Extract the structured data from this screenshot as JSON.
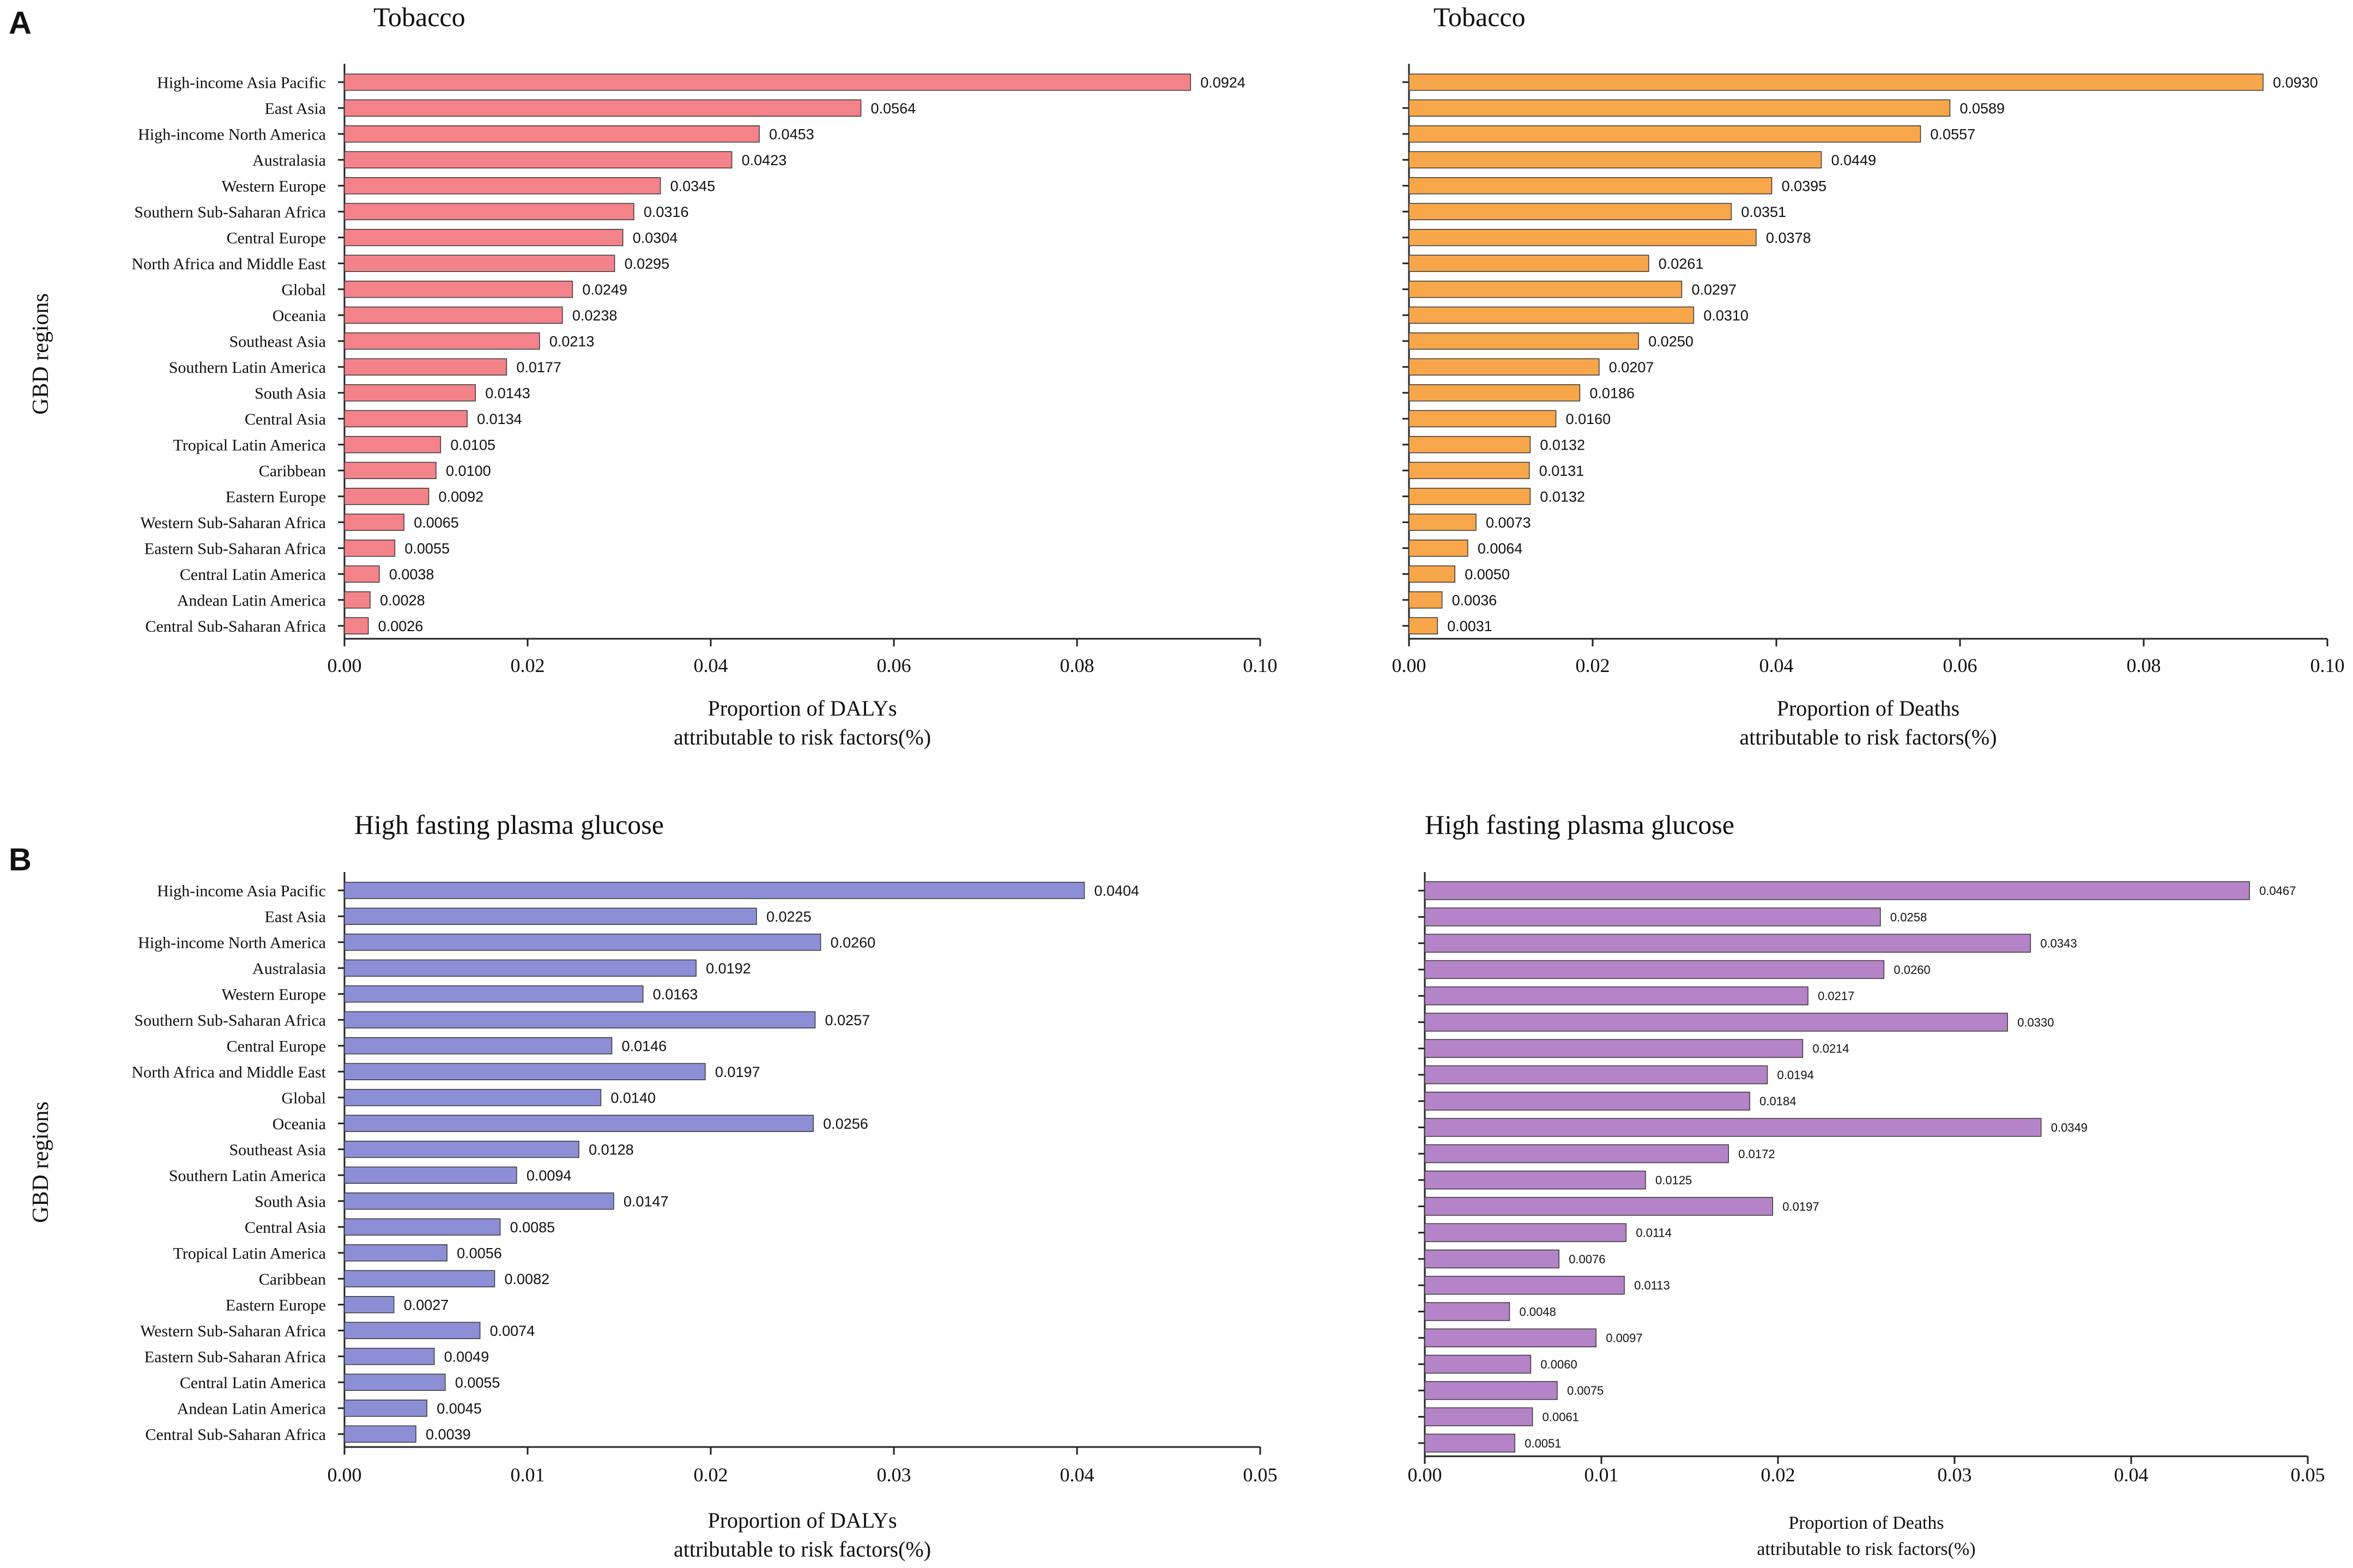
{
  "figure": {
    "regions": [
      "High-income Asia Pacific",
      "East Asia",
      "High-income North America",
      "Australasia",
      "Western Europe",
      "Southern Sub-Saharan Africa",
      "Central Europe",
      "North Africa and Middle East",
      "Global",
      "Oceania",
      "Southeast Asia",
      "Southern Latin America",
      "South Asia",
      "Central Asia",
      "Tropical Latin America",
      "Caribbean",
      "Eastern Europe",
      "Western Sub-Saharan Africa",
      "Eastern Sub-Saharan Africa",
      "Central Latin America",
      "Andean Latin America",
      "Central Sub-Saharan Africa"
    ]
  },
  "chart_data": [
    {
      "panel_label": "A",
      "type": "bar",
      "orientation": "horizontal",
      "title": "Tobacco",
      "xlabel": "Proportion of DALYs",
      "xlabel2": "attributable to risk factors(%)",
      "ylabel": "GBD regions",
      "color": "#f4828a",
      "xlim": [
        0,
        0.1
      ],
      "xticks": [
        "0.00",
        "0.02",
        "0.04",
        "0.06",
        "0.08",
        "0.10"
      ],
      "show_category_labels": true,
      "categories": [
        "High-income Asia Pacific",
        "East Asia",
        "High-income North America",
        "Australasia",
        "Western Europe",
        "Southern Sub-Saharan Africa",
        "Central Europe",
        "North Africa and Middle East",
        "Global",
        "Oceania",
        "Southeast Asia",
        "Southern Latin America",
        "South Asia",
        "Central Asia",
        "Tropical Latin America",
        "Caribbean",
        "Eastern Europe",
        "Western Sub-Saharan Africa",
        "Eastern Sub-Saharan Africa",
        "Central Latin America",
        "Andean Latin America",
        "Central Sub-Saharan Africa"
      ],
      "values": [
        0.0924,
        0.0564,
        0.0453,
        0.0423,
        0.0345,
        0.0316,
        0.0304,
        0.0295,
        0.0249,
        0.0238,
        0.0213,
        0.0177,
        0.0143,
        0.0134,
        0.0105,
        0.01,
        0.0092,
        0.0065,
        0.0055,
        0.0038,
        0.0028,
        0.0026
      ],
      "labels": [
        "0.0924",
        "0.0564",
        "0.0453",
        "0.0423",
        "0.0345",
        "0.0316",
        "0.0304",
        "0.0295",
        "0.0249",
        "0.0238",
        "0.0213",
        "0.0177",
        "0.0143",
        "0.0134",
        "0.0105",
        "0.0100",
        "0.0092",
        "0.0065",
        "0.0055",
        "0.0038",
        "0.0028",
        "0.0026"
      ]
    },
    {
      "panel_label": "",
      "type": "bar",
      "orientation": "horizontal",
      "title": "Tobacco",
      "xlabel": "Proportion of Deaths",
      "xlabel2": "attributable to risk factors(%)",
      "ylabel": "",
      "color": "#f8a64a",
      "xlim": [
        0,
        0.1
      ],
      "xticks": [
        "0.00",
        "0.02",
        "0.04",
        "0.06",
        "0.08",
        "0.10"
      ],
      "show_category_labels": false,
      "categories": [
        "High-income Asia Pacific",
        "East Asia",
        "High-income North America",
        "Australasia",
        "Western Europe",
        "Southern Sub-Saharan Africa",
        "Central Europe",
        "North Africa and Middle East",
        "Global",
        "Oceania",
        "Southeast Asia",
        "Southern Latin America",
        "South Asia",
        "Central Asia",
        "Tropical Latin America",
        "Caribbean",
        "Eastern Europe",
        "Western Sub-Saharan Africa",
        "Eastern Sub-Saharan Africa",
        "Central Latin America",
        "Andean Latin America",
        "Central Sub-Saharan Africa"
      ],
      "values": [
        0.093,
        0.0589,
        0.0557,
        0.0449,
        0.0395,
        0.0351,
        0.0378,
        0.0261,
        0.0297,
        0.031,
        0.025,
        0.0207,
        0.0186,
        0.016,
        0.0132,
        0.0131,
        0.0132,
        0.0073,
        0.0064,
        0.005,
        0.0036,
        0.0031
      ],
      "labels": [
        "0.0930",
        "0.0589",
        "0.0557",
        "0.0449",
        "0.0395",
        "0.0351",
        "0.0378",
        "0.0261",
        "0.0297",
        "0.0310",
        "0.0250",
        "0.0207",
        "0.0186",
        "0.0160",
        "0.0132",
        "0.0131",
        "0.0132",
        "0.0073",
        "0.0064",
        "0.0050",
        "0.0036",
        "0.0031"
      ]
    },
    {
      "panel_label": "B",
      "type": "bar",
      "orientation": "horizontal",
      "title": "High fasting plasma glucose",
      "xlabel": "Proportion of DALYs",
      "xlabel2": "attributable to risk factors(%)",
      "ylabel": "GBD regions",
      "color": "#8c8fd6",
      "xlim": [
        0,
        0.05
      ],
      "xticks": [
        "0.00",
        "0.01",
        "0.02",
        "0.03",
        "0.04",
        "0.05"
      ],
      "show_category_labels": true,
      "categories": [
        "High-income Asia Pacific",
        "East Asia",
        "High-income North America",
        "Australasia",
        "Western Europe",
        "Southern Sub-Saharan Africa",
        "Central Europe",
        "North Africa and Middle East",
        "Global",
        "Oceania",
        "Southeast Asia",
        "Southern Latin America",
        "South Asia",
        "Central Asia",
        "Tropical Latin America",
        "Caribbean",
        "Eastern Europe",
        "Western Sub-Saharan Africa",
        "Eastern Sub-Saharan Africa",
        "Central Latin America",
        "Andean Latin America",
        "Central Sub-Saharan Africa"
      ],
      "values": [
        0.0404,
        0.0225,
        0.026,
        0.0192,
        0.0163,
        0.0257,
        0.0146,
        0.0197,
        0.014,
        0.0256,
        0.0128,
        0.0094,
        0.0147,
        0.0085,
        0.0056,
        0.0082,
        0.0027,
        0.0074,
        0.0049,
        0.0055,
        0.0045,
        0.0039
      ],
      "labels": [
        "0.0404",
        "0.0225",
        "0.0260",
        "0.0192",
        "0.0163",
        "0.0257",
        "0.0146",
        "0.0197",
        "0.0140",
        "0.0256",
        "0.0128",
        "0.0094",
        "0.0147",
        "0.0085",
        "0.0056",
        "0.0082",
        "0.0027",
        "0.0074",
        "0.0049",
        "0.0055",
        "0.0045",
        "0.0039"
      ]
    },
    {
      "panel_label": "",
      "type": "bar",
      "orientation": "horizontal",
      "title": "High fasting plasma glucose",
      "xlabel": "Proportion of Deaths",
      "xlabel2": "attributable to risk factors(%)",
      "ylabel": "",
      "color": "#b584c8",
      "xlim": [
        0,
        0.05
      ],
      "xticks": [
        "0.00",
        "0.01",
        "0.02",
        "0.03",
        "0.04",
        "0.05"
      ],
      "show_category_labels": false,
      "categories": [
        "High-income Asia Pacific",
        "East Asia",
        "High-income North America",
        "Australasia",
        "Western Europe",
        "Southern Sub-Saharan Africa",
        "Central Europe",
        "North Africa and Middle East",
        "Global",
        "Oceania",
        "Southeast Asia",
        "Southern Latin America",
        "South Asia",
        "Central Asia",
        "Tropical Latin America",
        "Caribbean",
        "Eastern Europe",
        "Western Sub-Saharan Africa",
        "Eastern Sub-Saharan Africa",
        "Central Latin America",
        "Andean Latin America",
        "Central Sub-Saharan Africa"
      ],
      "values": [
        0.0467,
        0.0258,
        0.0343,
        0.026,
        0.0217,
        0.033,
        0.0214,
        0.0194,
        0.0184,
        0.0349,
        0.0172,
        0.0125,
        0.0197,
        0.0114,
        0.0076,
        0.0113,
        0.0048,
        0.0097,
        0.006,
        0.0075,
        0.0061,
        0.0051
      ],
      "labels": [
        "0.0467",
        "0.0258",
        "0.0343",
        "0.0260",
        "0.0217",
        "0.0330",
        "0.0214",
        "0.0194",
        "0.0184",
        "0.0349",
        "0.0172",
        "0.0125",
        "0.0197",
        "0.0114",
        "0.0076",
        "0.0113",
        "0.0048",
        "0.0097",
        "0.0060",
        "0.0075",
        "0.0061",
        "0.0051"
      ]
    }
  ]
}
